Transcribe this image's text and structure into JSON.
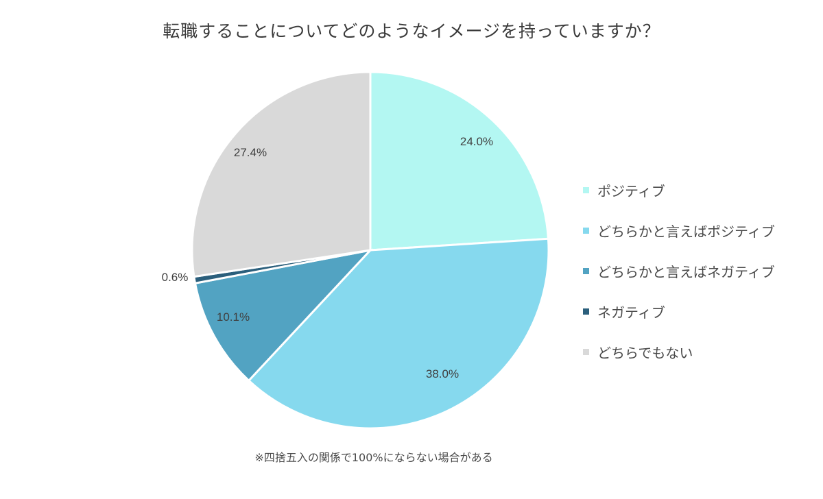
{
  "title": "転職することについてどのようなイメージを持っていますか？",
  "note": "※四捨五入の関係で100%にならない場合がある",
  "chart_data": {
    "type": "pie",
    "title": "転職することについてどのようなイメージを持っていますか？",
    "start": "12 o'clock, clockwise",
    "legend_position": "right",
    "slices": [
      {
        "label": "ポジティブ",
        "value": 24.0,
        "display": "24.0%",
        "color": "#b3f7f2"
      },
      {
        "label": "どちらかと言えばポジティブ",
        "value": 38.0,
        "display": "38.0%",
        "color": "#86d9ee"
      },
      {
        "label": "どちらかと言えばネガティブ",
        "value": 10.1,
        "display": "10.1%",
        "color": "#52a3c2"
      },
      {
        "label": "ネガティブ",
        "value": 0.6,
        "display": "0.6%",
        "color": "#2b5f7c"
      },
      {
        "label": "どちらでもない",
        "value": 27.4,
        "display": "27.4%",
        "color": "#d9d9d9"
      }
    ]
  }
}
